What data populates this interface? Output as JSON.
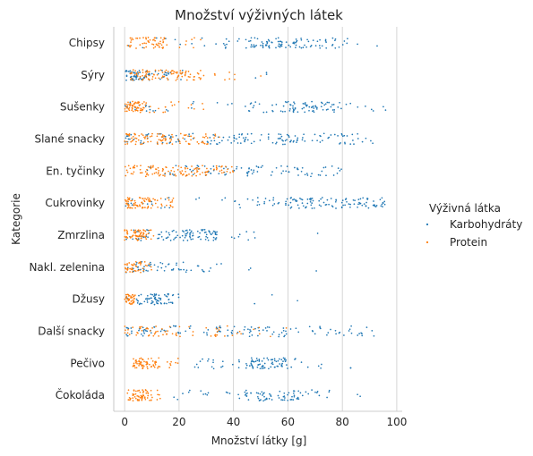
{
  "chart_data": {
    "type": "scatter",
    "title": "Množství výživných látek",
    "xlabel": "Množství látky [g]",
    "ylabel": "Kategorie",
    "xlim": [
      -4,
      102
    ],
    "xticks": [
      0,
      20,
      40,
      60,
      80,
      100
    ],
    "grid": "vertical",
    "legend": {
      "title": "Výživná látka",
      "placement": "right"
    },
    "categories": [
      "Chipsy",
      "Sýry",
      "Sušenky",
      "Slané snacky",
      "En. tyčinky",
      "Cukrovinky",
      "Zmrzlina",
      "Nakl. zelenina",
      "Džusy",
      "Další snacky",
      "Pečivo",
      "Čokoláda"
    ],
    "series": [
      {
        "name": "Karbohydráty",
        "color": "#1f77b4",
        "clusters": [
          [
            [
              46,
              58,
              38
            ],
            [
              56,
              68,
              30
            ],
            [
              68,
              82,
              24
            ],
            [
              0,
              46,
              22
            ],
            [
              84,
              93,
              2
            ]
          ],
          [
            [
              0,
              10,
              55
            ],
            [
              10,
              22,
              18
            ],
            [
              42,
              53,
              3
            ]
          ],
          [
            [
              0,
              10,
              12
            ],
            [
              44,
              58,
              16
            ],
            [
              58,
              77,
              60
            ],
            [
              77,
              97,
              12
            ],
            [
              10,
              44,
              10
            ]
          ],
          [
            [
              0,
              30,
              45
            ],
            [
              30,
              60,
              60
            ],
            [
              60,
              88,
              45
            ],
            [
              88,
              97,
              3
            ]
          ],
          [
            [
              22,
              48,
              45
            ],
            [
              48,
              80,
              40
            ],
            [
              5,
              22,
              8
            ]
          ],
          [
            [
              0,
              18,
              15
            ],
            [
              44,
              60,
              20
            ],
            [
              60,
              97,
              100
            ],
            [
              18,
              44,
              8
            ]
          ],
          [
            [
              0,
              8,
              15
            ],
            [
              8,
              20,
              25
            ],
            [
              20,
              34,
              60
            ],
            [
              34,
              48,
              8
            ],
            [
              70,
              71,
              1
            ]
          ],
          [
            [
              0,
              8,
              18
            ],
            [
              8,
              22,
              25
            ],
            [
              22,
              36,
              12
            ],
            [
              45,
              47,
              2
            ],
            [
              70,
              71,
              1
            ]
          ],
          [
            [
              0,
              8,
              15
            ],
            [
              8,
              18,
              55
            ],
            [
              18,
              20,
              2
            ],
            [
              42,
              79,
              3
            ]
          ],
          [
            [
              0,
              30,
              40
            ],
            [
              30,
              60,
              50
            ],
            [
              60,
              92,
              30
            ]
          ],
          [
            [
              25,
              44,
              18
            ],
            [
              44,
              60,
              70
            ],
            [
              60,
              86,
              10
            ]
          ],
          [
            [
              18,
              44,
              15
            ],
            [
              44,
              64,
              60
            ],
            [
              64,
              76,
              12
            ],
            [
              84,
              87,
              2
            ]
          ]
        ]
      },
      {
        "name": "Protein",
        "color": "#ff7f0e",
        "clusters": [
          [
            [
              1,
              15,
              55
            ],
            [
              15,
              30,
              8
            ]
          ],
          [
            [
              2,
              18,
              60
            ],
            [
              18,
              28,
              35
            ],
            [
              28,
              41,
              8
            ],
            [
              50,
              51,
              1
            ]
          ],
          [
            [
              0,
              8,
              60
            ],
            [
              8,
              20,
              12
            ],
            [
              20,
              33,
              5
            ]
          ],
          [
            [
              0,
              18,
              70
            ],
            [
              18,
              31,
              30
            ],
            [
              31,
              36,
              4
            ]
          ],
          [
            [
              0,
              20,
              60
            ],
            [
              20,
              36,
              50
            ],
            [
              36,
              40,
              8
            ]
          ],
          [
            [
              0,
              10,
              60
            ],
            [
              10,
              18,
              20
            ]
          ],
          [
            [
              0,
              8,
              60
            ],
            [
              8,
              12,
              6
            ]
          ],
          [
            [
              0,
              6,
              40
            ],
            [
              6,
              10,
              8
            ]
          ],
          [
            [
              0,
              4,
              40
            ]
          ],
          [
            [
              0,
              20,
              40
            ],
            [
              20,
              40,
              18
            ],
            [
              40,
              60,
              8
            ]
          ],
          [
            [
              3,
              13,
              65
            ],
            [
              13,
              20,
              8
            ]
          ],
          [
            [
              1,
              10,
              60
            ],
            [
              10,
              14,
              6
            ]
          ]
        ]
      }
    ]
  }
}
